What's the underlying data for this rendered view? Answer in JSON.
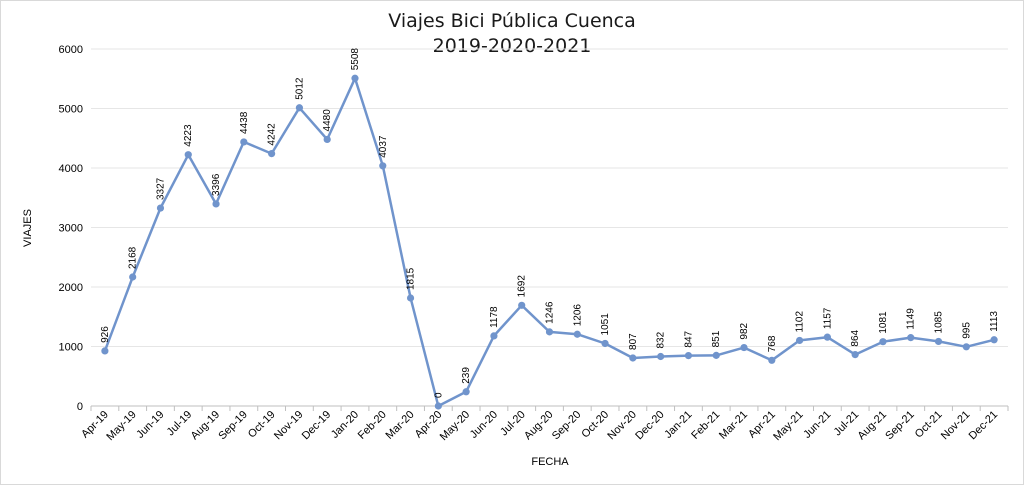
{
  "chart_data": {
    "type": "line",
    "title": "Viajes Bici Pública Cuenca",
    "subtitle": "2019-2020-2021",
    "xlabel": "FECHA",
    "ylabel": "VIAJES",
    "ylim": [
      0,
      6000
    ],
    "yticks": [
      0,
      1000,
      2000,
      3000,
      4000,
      5000,
      6000
    ],
    "grid": true,
    "legend": "none",
    "categories": [
      "Apr-19",
      "May-19",
      "Jun-19",
      "Jul-19",
      "Aug-19",
      "Sep-19",
      "Oct-19",
      "Nov-19",
      "Dec-19",
      "Jan-20",
      "Feb-20",
      "Mar-20",
      "Apr-20",
      "May-20",
      "Jun-20",
      "Jul-20",
      "Aug-20",
      "Sep-20",
      "Oct-20",
      "Nov-20",
      "Dec-20",
      "Jan-21",
      "Feb-21",
      "Mar-21",
      "Apr-21",
      "May-21",
      "Jun-21",
      "Jul-21",
      "Aug-21",
      "Sep-21",
      "Oct-21",
      "Nov-21",
      "Dec-21"
    ],
    "values": [
      926,
      2168,
      3327,
      4223,
      3396,
      4438,
      4242,
      5012,
      4480,
      5508,
      4037,
      1815,
      0,
      239,
      1178,
      1692,
      1246,
      1206,
      1051,
      807,
      832,
      847,
      851,
      982,
      768,
      1102,
      1157,
      864,
      1081,
      1149,
      1085,
      995,
      1113
    ],
    "color": "#7094cc"
  }
}
